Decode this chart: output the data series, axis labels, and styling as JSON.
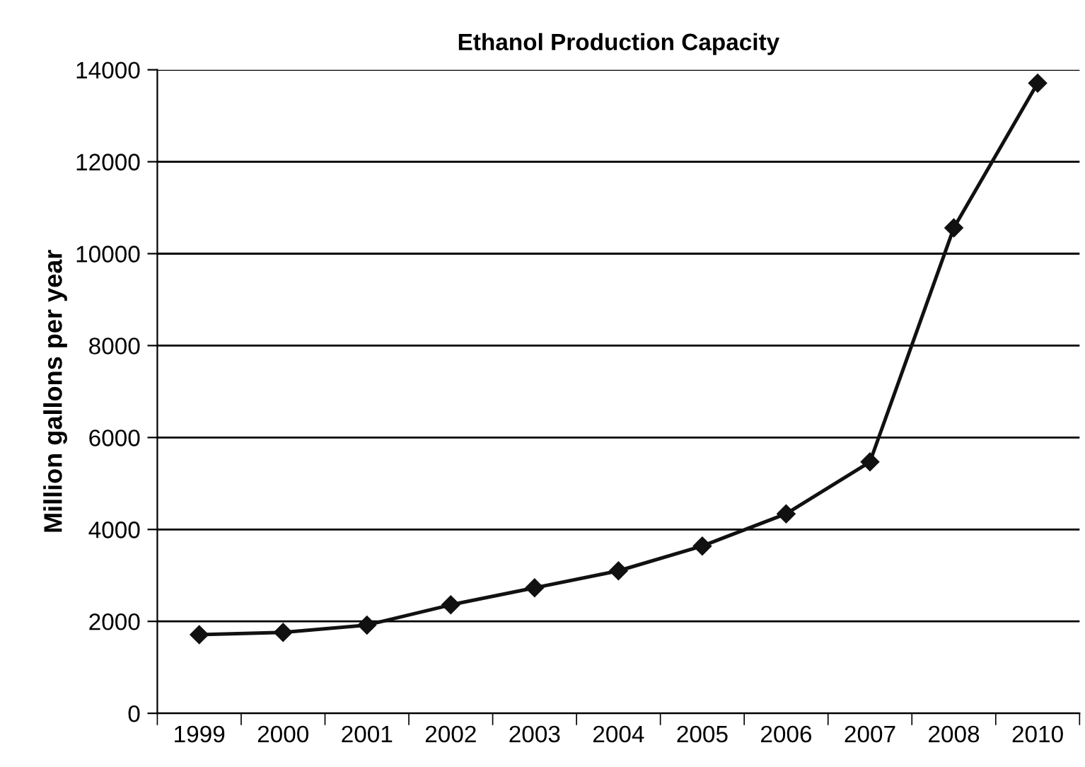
{
  "chart_data": {
    "type": "line",
    "title": "Ethanol Production Capacity",
    "ylabel": "Million gallons per year",
    "categories": [
      "1999",
      "2000",
      "2001",
      "2002",
      "2003",
      "2004",
      "2005",
      "2006",
      "2007",
      "2008",
      "2010"
    ],
    "series": [
      {
        "color": "#111111",
        "values": [
          1710,
          1760,
          1920,
          2360,
          2730,
          3100,
          3640,
          4340,
          5470,
          10560,
          13710
        ]
      }
    ],
    "ylim": [
      0,
      14000
    ],
    "yticks": [
      0,
      2000,
      4000,
      6000,
      8000,
      10000,
      12000,
      14000
    ],
    "grid": "y",
    "marker": "diamond",
    "line_style": "solid",
    "legend": false
  }
}
